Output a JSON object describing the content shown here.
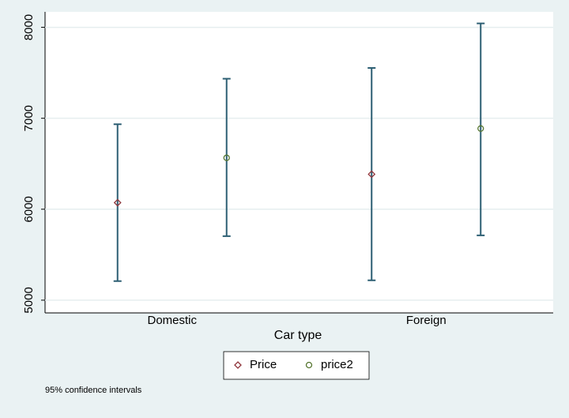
{
  "chart_data": {
    "type": "dot-ci",
    "x_label": "Car type",
    "note": "95% confidence intervals",
    "categories": [
      "Domestic",
      "Foreign"
    ],
    "series": [
      {
        "name": "Price",
        "color": "#90353b",
        "marker": "diamond",
        "values": [
          6072,
          6385
        ],
        "lower": [
          5210,
          5218
        ],
        "upper": [
          6934,
          7553
        ]
      },
      {
        "name": "price2",
        "color": "#55752f",
        "marker": "circle",
        "values": [
          6565,
          6887
        ],
        "lower": [
          5704,
          5713
        ],
        "upper": [
          7435,
          8043
        ]
      }
    ],
    "error_color": "#2d5f73",
    "ylim": [
      4860,
      8170
    ],
    "yticks": [
      5000,
      6000,
      7000,
      8000
    ],
    "grid": true
  }
}
